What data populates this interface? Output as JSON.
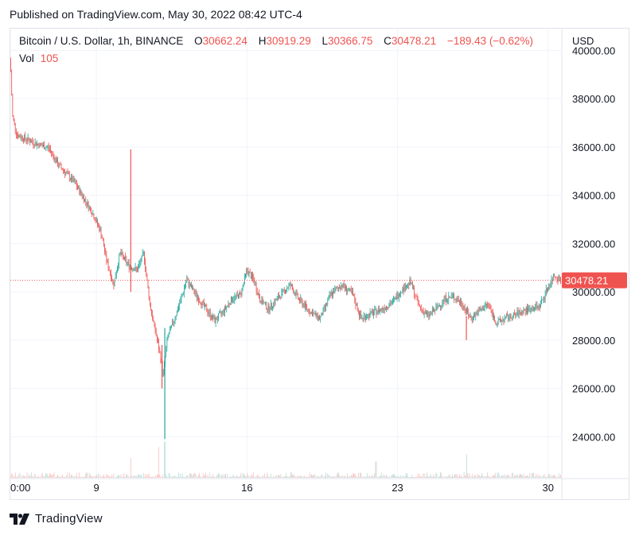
{
  "published": "Published on TradingView.com, May 30, 2022 08:42 UTC-4",
  "legend": {
    "symbol": "Bitcoin / U.S. Dollar, 1h, BINANCE",
    "o_label": "O",
    "o_value": "30662.24",
    "h_label": "H",
    "h_value": "30919.29",
    "l_label": "L",
    "l_value": "30366.75",
    "c_label": "C",
    "c_value": "30478.21",
    "change": "−189.43 (−0.62%)",
    "vol_label": "Vol",
    "vol_value": "105"
  },
  "brand": {
    "name": "TradingView"
  },
  "colors": {
    "up": "#26a69a",
    "down": "#ef5350",
    "vol_up": "#a5d6d0",
    "vol_down": "#f6b2b0",
    "grid": "#f0f3fa"
  },
  "chart_data": {
    "type": "candlestick",
    "currency_label": "USD",
    "y_ticks": [
      "40000.00",
      "38000.00",
      "36000.00",
      "34000.00",
      "32000.00",
      "30000.00",
      "28000.00",
      "26000.00",
      "24000.00"
    ],
    "y_tick_values": [
      40000,
      38000,
      36000,
      34000,
      32000,
      30000,
      28000,
      26000,
      24000
    ],
    "ylim": [
      22300,
      40900
    ],
    "x_ticks": [
      {
        "label": "0:00",
        "day": 5.0
      },
      {
        "label": "9",
        "day": 9.0
      },
      {
        "label": "16",
        "day": 16.0
      },
      {
        "label": "23",
        "day": 23.0
      },
      {
        "label": "30",
        "day": 30.0
      }
    ],
    "xlim": [
      5.0,
      30.6
    ],
    "last_price": 30478.21,
    "last_price_label": "30478.21",
    "price_path": [
      [
        5.0,
        39600
      ],
      [
        5.1,
        37300
      ],
      [
        5.3,
        36500
      ],
      [
        5.8,
        36300
      ],
      [
        6.3,
        36100
      ],
      [
        6.8,
        35950
      ],
      [
        7.2,
        35300
      ],
      [
        7.6,
        34900
      ],
      [
        8.0,
        34500
      ],
      [
        8.4,
        33900
      ],
      [
        8.8,
        33300
      ],
      [
        9.2,
        32500
      ],
      [
        9.5,
        31200
      ],
      [
        9.8,
        30300
      ],
      [
        10.1,
        31600
      ],
      [
        10.5,
        31100
      ],
      [
        10.9,
        30900
      ],
      [
        11.2,
        31600
      ],
      [
        11.5,
        29400
      ],
      [
        11.8,
        28100
      ],
      [
        12.0,
        27200
      ],
      [
        12.1,
        26500
      ],
      [
        12.3,
        28100
      ],
      [
        12.6,
        28800
      ],
      [
        12.9,
        29600
      ],
      [
        13.2,
        30500
      ],
      [
        13.6,
        29900
      ],
      [
        14.0,
        29400
      ],
      [
        14.5,
        28800
      ],
      [
        14.9,
        29200
      ],
      [
        15.3,
        29700
      ],
      [
        15.7,
        29900
      ],
      [
        16.0,
        30900
      ],
      [
        16.3,
        30500
      ],
      [
        16.6,
        29700
      ],
      [
        17.0,
        29300
      ],
      [
        17.5,
        29800
      ],
      [
        18.0,
        30300
      ],
      [
        18.4,
        29700
      ],
      [
        18.9,
        29200
      ],
      [
        19.4,
        28900
      ],
      [
        19.9,
        29900
      ],
      [
        20.4,
        30300
      ],
      [
        20.9,
        29900
      ],
      [
        21.3,
        28900
      ],
      [
        21.8,
        29100
      ],
      [
        22.3,
        29300
      ],
      [
        22.8,
        29600
      ],
      [
        23.2,
        30100
      ],
      [
        23.6,
        30400
      ],
      [
        24.0,
        29400
      ],
      [
        24.4,
        29000
      ],
      [
        24.8,
        29300
      ],
      [
        25.2,
        29700
      ],
      [
        25.6,
        29800
      ],
      [
        26.0,
        29500
      ],
      [
        26.4,
        28900
      ],
      [
        26.8,
        29200
      ],
      [
        27.2,
        29500
      ],
      [
        27.6,
        28700
      ],
      [
        28.0,
        28900
      ],
      [
        28.4,
        29000
      ],
      [
        28.8,
        29200
      ],
      [
        29.2,
        29300
      ],
      [
        29.6,
        29400
      ],
      [
        30.0,
        30200
      ],
      [
        30.3,
        30700
      ],
      [
        30.6,
        30478
      ]
    ],
    "spikes": [
      {
        "day": 10.6,
        "high": 35900,
        "low": 30000
      },
      {
        "day": 12.05,
        "high": 27800,
        "low": 26000
      },
      {
        "day": 12.18,
        "high": 28500,
        "low": 23900
      },
      {
        "day": 26.2,
        "high": 29000,
        "low": 28000
      }
    ],
    "volume_spikes": [
      {
        "day": 10.6,
        "rel": 0.55
      },
      {
        "day": 11.9,
        "rel": 0.85
      },
      {
        "day": 12.18,
        "rel": 1.0
      },
      {
        "day": 26.2,
        "rel": 0.65
      },
      {
        "day": 22.0,
        "rel": 0.45
      }
    ]
  }
}
